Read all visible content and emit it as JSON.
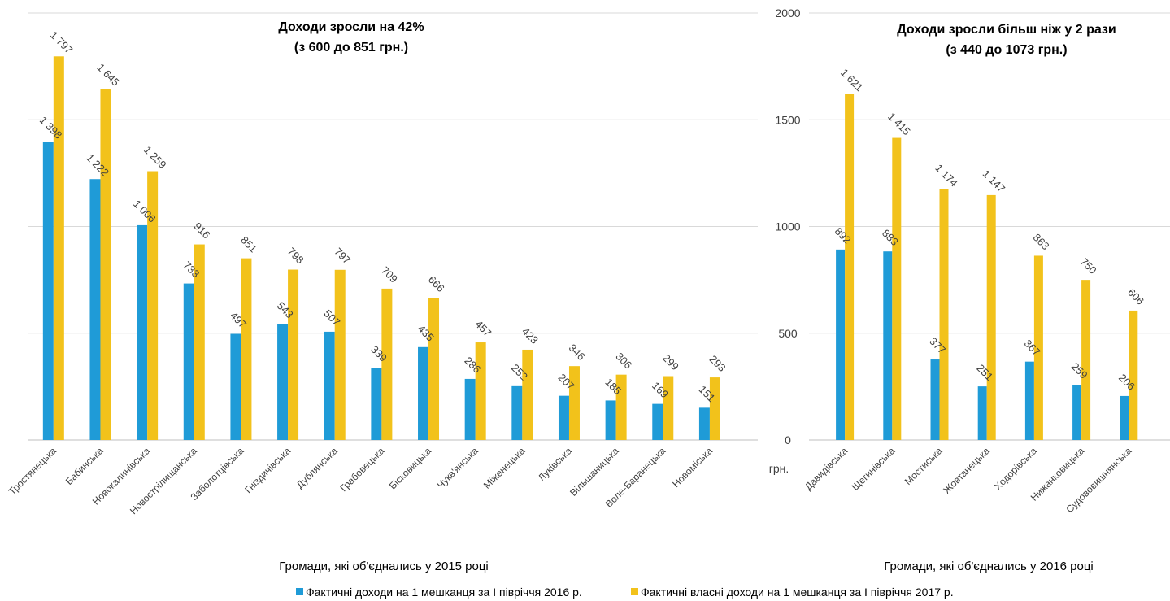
{
  "chart_data": {
    "type": "bar",
    "ylim": [
      0,
      2000
    ],
    "yticks": [
      "0",
      "500",
      "1000",
      "1500",
      "2000"
    ],
    "yunit": "грн.",
    "grid": true,
    "legend_position": "bottom",
    "series_meta": [
      {
        "name": "Фактичні доходи на 1 мешканця за І півріччя 2016 р.",
        "color": "#1f9bd7"
      },
      {
        "name": "Фактичні власні доходи на 1 мешканця за І півріччя 2017 р.",
        "color": "#f2c21b"
      }
    ],
    "panels": [
      {
        "title_line1": "Доходи зросли на 42%",
        "title_line2": "(з 600 до 851 грн.)",
        "xlabel": "Громади, які об'єднались у 2015 році",
        "categories": [
          "Тростянецька",
          "Бабинська",
          "Новокалинівська",
          "Новострілищанська",
          "Заболотцівська",
          "Гніздичівська",
          "Дублянська",
          "Грабовецька",
          "Бісковицька",
          "Чукв'янська",
          "Міженецька",
          "Луківська",
          "Вільшаницька",
          "Воле-Баранецька",
          "Новоміська"
        ],
        "series": [
          {
            "name": "Фактичні доходи на 1 мешканця за І півріччя 2016 р.",
            "values": [
              1398,
              1222,
              1006,
              733,
              497,
              543,
              507,
              339,
              435,
              286,
              252,
              207,
              185,
              169,
              151
            ],
            "labels": [
              "1 398",
              "1 222",
              "1 006",
              "733",
              "497",
              "543",
              "507",
              "339",
              "435",
              "286",
              "252",
              "207",
              "185",
              "169",
              "151"
            ]
          },
          {
            "name": "Фактичні власні доходи на 1 мешканця за І півріччя 2017 р.",
            "values": [
              1797,
              1645,
              1259,
              916,
              851,
              798,
              797,
              709,
              666,
              457,
              423,
              346,
              306,
              299,
              293
            ],
            "labels": [
              "1 797",
              "1 645",
              "1 259",
              "916",
              "851",
              "798",
              "797",
              "709",
              "666",
              "457",
              "423",
              "346",
              "306",
              "299",
              "293"
            ]
          }
        ]
      },
      {
        "title_line1": "Доходи зросли більш ніж у 2 рази",
        "title_line2": "(з 440 до 1073 грн.)",
        "xlabel": "Громади, які об'єднались у 2016 році",
        "categories": [
          "Давидівська",
          "Щегинівська",
          "Мостиська",
          "Жовтанецька",
          "Ходорівська",
          "Нижанковицька",
          "Судововишнянська"
        ],
        "series": [
          {
            "name": "Фактичні доходи на 1 мешканця за І півріччя 2016 р.",
            "values": [
              892,
              883,
              377,
              251,
              367,
              259,
              206
            ],
            "labels": [
              "892",
              "883",
              "377",
              "251",
              "367",
              "259",
              "206"
            ]
          },
          {
            "name": "Фактичні власні доходи на 1 мешканця за І півріччя 2017 р.",
            "values": [
              1621,
              1415,
              1174,
              1147,
              863,
              750,
              606
            ],
            "labels": [
              "1 621",
              "1 415",
              "1 174",
              "1 147",
              "863",
              "750",
              "606"
            ]
          }
        ]
      }
    ]
  }
}
